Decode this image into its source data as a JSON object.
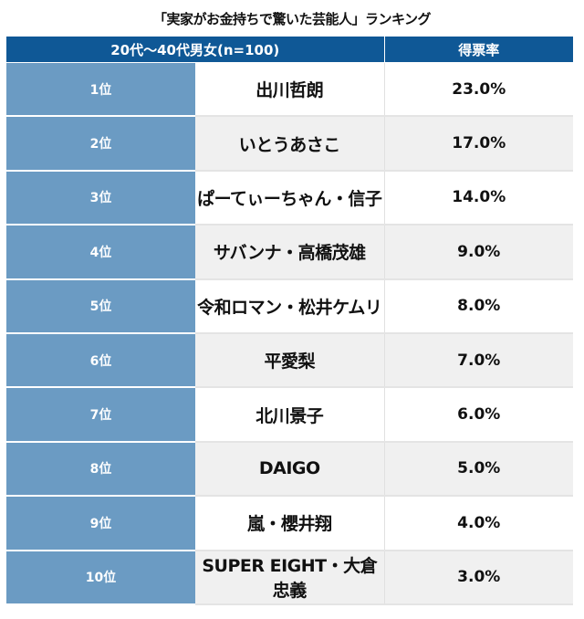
{
  "chart_data": {
    "type": "table",
    "title": "「実家がお金持ちで驚いた芸能人」ランキング",
    "header": {
      "group": "20代～40代男女(n=100)",
      "value": "得票率"
    },
    "rows": [
      {
        "rank": "1位",
        "name": "出川哲朗",
        "value": "23.0%"
      },
      {
        "rank": "2位",
        "name": "いとうあさこ",
        "value": "17.0%"
      },
      {
        "rank": "3位",
        "name": "ぱーてぃーちゃん・信子",
        "value": "14.0%"
      },
      {
        "rank": "4位",
        "name": "サバンナ・高橋茂雄",
        "value": "9.0%"
      },
      {
        "rank": "5位",
        "name": "令和ロマン・松井ケムリ",
        "value": "8.0%"
      },
      {
        "rank": "6位",
        "name": "平愛梨",
        "value": "7.0%"
      },
      {
        "rank": "7位",
        "name": "北川景子",
        "value": "6.0%"
      },
      {
        "rank": "8位",
        "name": "DAIGO",
        "value": "5.0%"
      },
      {
        "rank": "9位",
        "name": "嵐・櫻井翔",
        "value": "4.0%"
      },
      {
        "rank": "10位",
        "name": "SUPER EIGHT・大倉忠義",
        "value": "3.0%"
      }
    ]
  },
  "colors": {
    "header": "#0f5896",
    "rank_cell": "#6b9bc3",
    "alt_row": "#f0f0f0"
  }
}
